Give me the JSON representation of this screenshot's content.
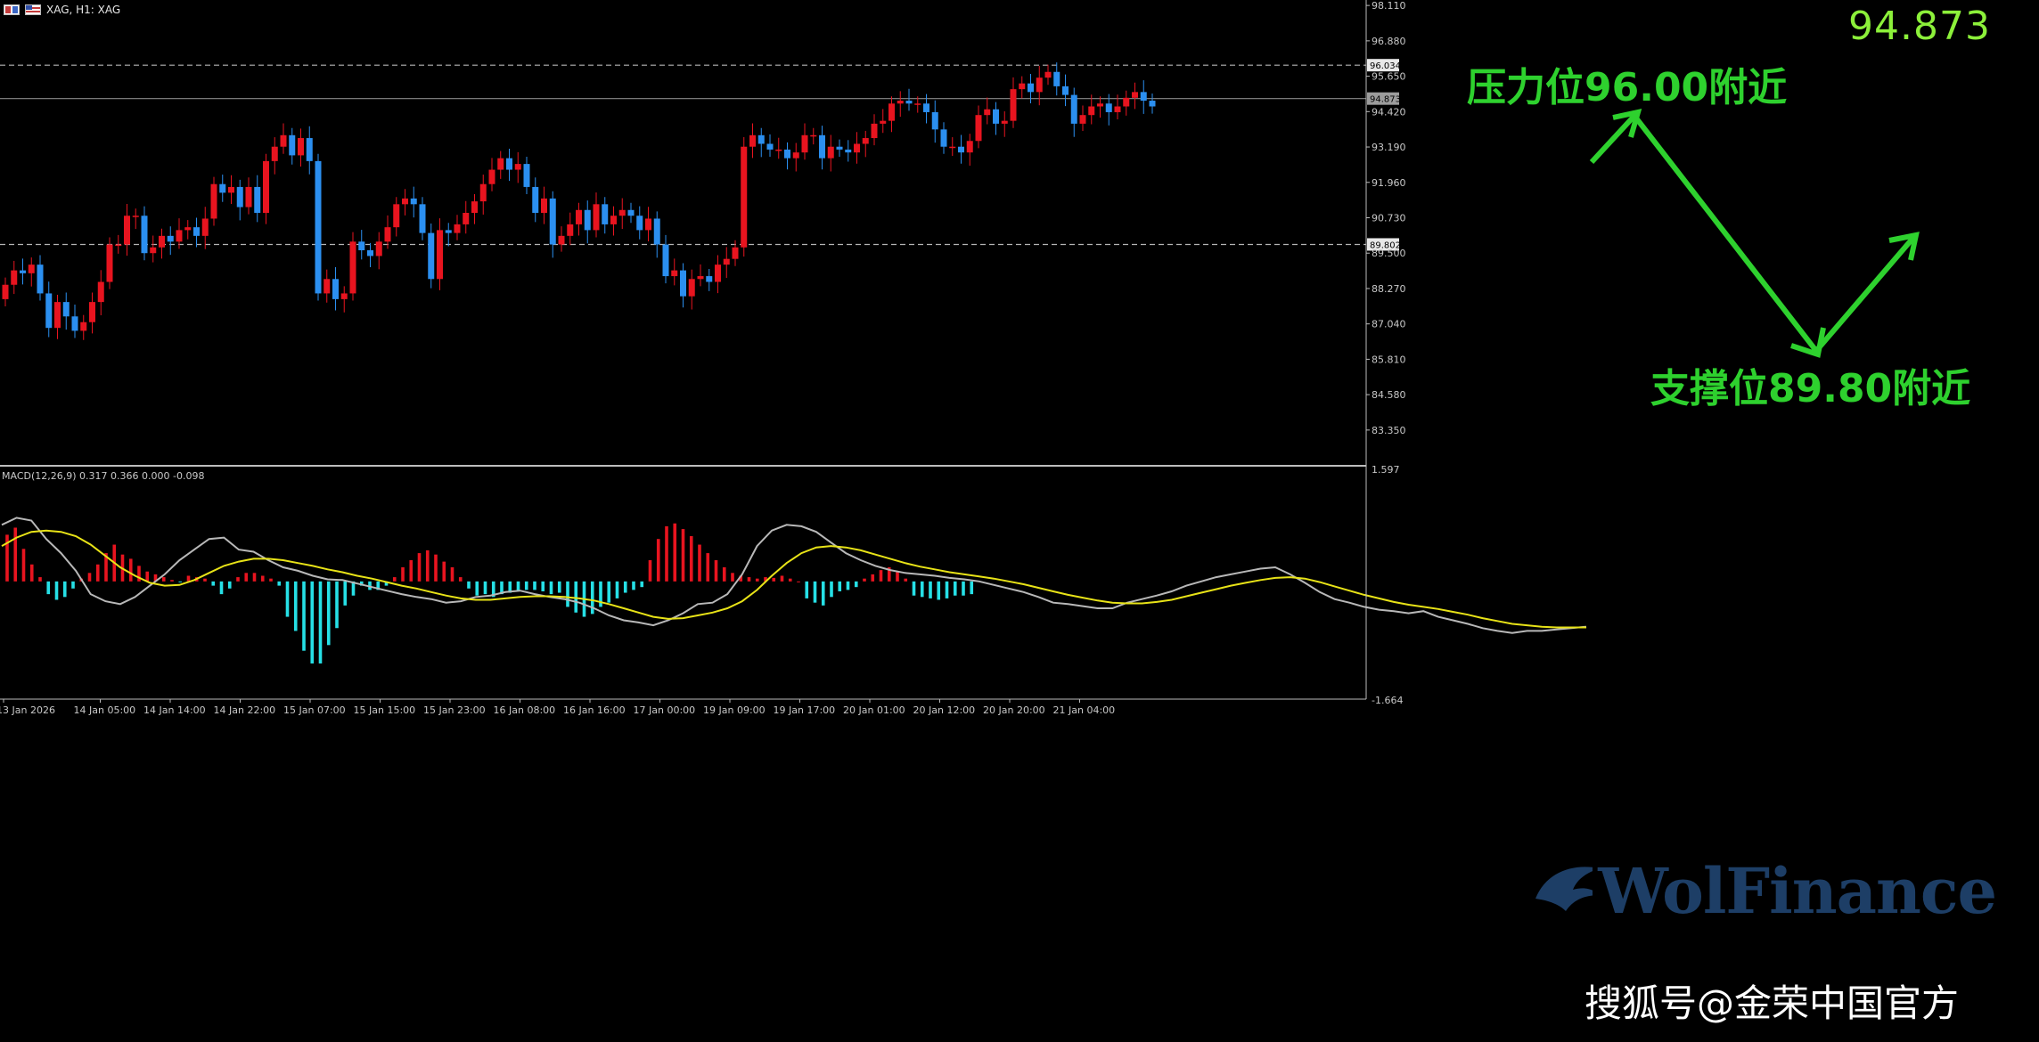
{
  "header": {
    "symbol_label": "XAG, H1: XAG"
  },
  "big_price": "94.873",
  "annotations": {
    "resistance": {
      "prefix": "压力位",
      "value": "96.00",
      "suffix": "附近"
    },
    "support": {
      "prefix": "支撑位",
      "value": "89.80",
      "suffix": "附近"
    }
  },
  "watermark": {
    "brand": "WolFinance",
    "source": "搜狐号@金荣中国官方"
  },
  "colors": {
    "background": "#000000",
    "bull": "#e8141f",
    "bear": "#2b8ff0",
    "macd_pos": "#e8141f",
    "macd_neg": "#26e0e6",
    "macd_line": "#b8b8b8",
    "signal_line": "#e8e317",
    "annotation": "#2ed12e",
    "big_price": "#8cf03a",
    "axis_text": "#c8c8c8"
  },
  "chart_data": [
    {
      "type": "candlestick",
      "title": "XAG, H1",
      "y_axis_ticks": [
        "98.110",
        "96.880",
        "95.650",
        "94.420",
        "93.190",
        "91.960",
        "90.730",
        "89.500",
        "88.270",
        "87.040",
        "85.810",
        "84.580",
        "83.350"
      ],
      "ylim": [
        82.2,
        98.3
      ],
      "levels": [
        {
          "label": "96.034",
          "value": 96.034,
          "style": "dashed"
        },
        {
          "label": "94.873",
          "value": 94.873,
          "style": "solid"
        },
        {
          "label": "89.802",
          "value": 89.802,
          "style": "dashed"
        }
      ],
      "x_tick_labels": [
        "13 Jan 2026",
        "14 Jan 05:00",
        "14 Jan 14:00",
        "14 Jan 22:00",
        "15 Jan 07:00",
        "15 Jan 15:00",
        "15 Jan 23:00",
        "16 Jan 08:00",
        "16 Jan 16:00",
        "17 Jan 00:00",
        "19 Jan 09:00",
        "19 Jan 17:00",
        "20 Jan 01:00",
        "20 Jan 12:00",
        "20 Jan 20:00",
        "21 Jan 04:00"
      ],
      "closes": [
        88.4,
        88.9,
        88.8,
        89.1,
        88.1,
        86.9,
        87.8,
        87.3,
        86.8,
        87.1,
        87.8,
        88.5,
        89.8,
        89.8,
        90.8,
        90.8,
        89.5,
        89.7,
        90.1,
        89.9,
        90.3,
        90.4,
        90.1,
        90.7,
        91.9,
        91.6,
        91.8,
        91.1,
        91.8,
        90.9,
        92.7,
        93.2,
        93.6,
        92.9,
        93.5,
        92.7,
        88.1,
        88.6,
        87.9,
        88.1,
        89.9,
        89.6,
        89.4,
        89.9,
        90.4,
        91.2,
        91.4,
        91.2,
        90.2,
        88.6,
        90.3,
        90.2,
        90.5,
        90.9,
        91.3,
        91.9,
        92.4,
        92.8,
        92.4,
        92.6,
        91.8,
        90.9,
        91.4,
        89.8,
        90.1,
        90.5,
        91.0,
        90.3,
        91.2,
        90.5,
        90.8,
        91.0,
        90.8,
        90.3,
        90.7,
        89.8,
        88.7,
        88.9,
        88.0,
        88.6,
        88.7,
        88.5,
        89.1,
        89.3,
        89.7,
        93.2,
        93.6,
        93.3,
        93.1,
        93.1,
        92.8,
        93.0,
        93.6,
        93.6,
        92.8,
        93.2,
        93.1,
        93.0,
        93.3,
        93.5,
        94.0,
        94.1,
        94.7,
        94.8,
        94.7,
        94.7,
        94.4,
        93.8,
        93.2,
        93.2,
        93.0,
        93.4,
        94.3,
        94.5,
        94.0,
        94.1,
        95.2,
        95.4,
        95.1,
        95.6,
        95.8,
        95.3,
        95.0,
        94.0,
        94.3,
        94.6,
        94.7,
        94.4,
        94.6,
        94.9,
        95.1,
        94.8,
        94.6
      ]
    },
    {
      "type": "bar+line",
      "title": "MACD(12,26,9) 0.317 0.366 0.000 -0.098",
      "y_axis_ticks": [
        "1.597",
        "-1.664"
      ],
      "ylim": [
        -1.664,
        1.597
      ],
      "series": [
        {
          "name": "MACD",
          "values": [
            0.8,
            0.9,
            0.86,
            0.6,
            0.4,
            0.15,
            -0.18,
            -0.28,
            -0.32,
            -0.22,
            -0.06,
            0.1,
            0.3,
            0.45,
            0.6,
            0.62,
            0.45,
            0.42,
            0.3,
            0.2,
            0.15,
            0.08,
            0.03,
            0.02,
            -0.03,
            -0.08,
            -0.13,
            -0.18,
            -0.22,
            -0.25,
            -0.3,
            -0.28,
            -0.22,
            -0.2,
            -0.15,
            -0.13,
            -0.18,
            -0.22,
            -0.25,
            -0.3,
            -0.38,
            -0.48,
            -0.55,
            -0.58,
            -0.62,
            -0.55,
            -0.45,
            -0.32,
            -0.3,
            -0.18,
            0.1,
            0.5,
            0.72,
            0.8,
            0.78,
            0.7,
            0.55,
            0.4,
            0.3,
            0.22,
            0.16,
            0.12,
            0.1,
            0.08,
            0.05,
            0.03,
            0.0,
            -0.05,
            -0.1,
            -0.15,
            -0.22,
            -0.3,
            -0.32,
            -0.35,
            -0.38,
            -0.38,
            -0.3,
            -0.25,
            -0.2,
            -0.14,
            -0.06,
            0.0,
            0.06,
            0.1,
            0.14,
            0.18,
            0.2,
            0.1,
            -0.02,
            -0.15,
            -0.25,
            -0.3,
            -0.36,
            -0.4,
            -0.42,
            -0.45,
            -0.42,
            -0.5,
            -0.55,
            -0.6,
            -0.66,
            -0.7,
            -0.73,
            -0.7,
            -0.7,
            -0.68,
            -0.66,
            -0.64
          ]
        },
        {
          "name": "Signal",
          "values": [
            0.5,
            0.62,
            0.7,
            0.72,
            0.7,
            0.64,
            0.52,
            0.36,
            0.2,
            0.08,
            -0.02,
            -0.06,
            -0.05,
            0.02,
            0.12,
            0.22,
            0.28,
            0.32,
            0.32,
            0.3,
            0.26,
            0.22,
            0.17,
            0.13,
            0.08,
            0.04,
            -0.01,
            -0.06,
            -0.1,
            -0.15,
            -0.2,
            -0.24,
            -0.26,
            -0.26,
            -0.24,
            -0.22,
            -0.21,
            -0.21,
            -0.22,
            -0.24,
            -0.27,
            -0.32,
            -0.38,
            -0.44,
            -0.5,
            -0.53,
            -0.52,
            -0.48,
            -0.44,
            -0.38,
            -0.28,
            -0.12,
            0.08,
            0.26,
            0.4,
            0.48,
            0.5,
            0.48,
            0.44,
            0.38,
            0.32,
            0.26,
            0.21,
            0.17,
            0.13,
            0.1,
            0.07,
            0.04,
            0.0,
            -0.04,
            -0.09,
            -0.14,
            -0.19,
            -0.23,
            -0.27,
            -0.3,
            -0.31,
            -0.31,
            -0.29,
            -0.26,
            -0.21,
            -0.16,
            -0.11,
            -0.06,
            -0.02,
            0.02,
            0.05,
            0.06,
            0.04,
            -0.01,
            -0.07,
            -0.13,
            -0.19,
            -0.24,
            -0.29,
            -0.33,
            -0.36,
            -0.39,
            -0.43,
            -0.47,
            -0.52,
            -0.56,
            -0.6,
            -0.62,
            -0.64,
            -0.65,
            -0.65,
            -0.65
          ]
        },
        {
          "name": "Histogram",
          "values": [
            0.66,
            0.76,
            0.46,
            0.24,
            0.06,
            -0.18,
            -0.26,
            -0.22,
            -0.1,
            0.04,
            0.12,
            0.24,
            0.4,
            0.52,
            0.38,
            0.32,
            0.22,
            0.14,
            0.1,
            0.06,
            0.02,
            -0.01,
            0.08,
            0.06,
            0.04,
            -0.06,
            -0.18,
            -0.1,
            0.06,
            0.12,
            0.12,
            0.08,
            0.04,
            -0.06,
            -0.5,
            -0.7,
            -0.98,
            -1.16,
            -1.16,
            -0.9,
            -0.66,
            -0.34,
            -0.2,
            -0.06,
            -0.12,
            -0.12,
            -0.06,
            0.06,
            0.2,
            0.3,
            0.4,
            0.44,
            0.38,
            0.28,
            0.2,
            0.06,
            -0.1,
            -0.2,
            -0.18,
            -0.22,
            -0.18,
            -0.16,
            -0.14,
            -0.12,
            -0.12,
            -0.14,
            -0.18,
            -0.16,
            -0.36,
            -0.44,
            -0.5,
            -0.46,
            -0.36,
            -0.3,
            -0.24,
            -0.16,
            -0.12,
            -0.08,
            0.3,
            0.6,
            0.78,
            0.82,
            0.74,
            0.64,
            0.52,
            0.4,
            0.3,
            0.2,
            0.12,
            0.08,
            0.06,
            0.04,
            0.06,
            0.05,
            0.08,
            0.04,
            0.0,
            -0.24,
            -0.3,
            -0.34,
            -0.22,
            -0.14,
            -0.12,
            -0.08,
            0.04,
            0.1,
            0.16,
            0.2,
            0.14,
            0.04,
            -0.2,
            -0.22,
            -0.24,
            -0.26,
            -0.24,
            -0.2,
            -0.2,
            -0.18
          ]
        }
      ]
    }
  ]
}
